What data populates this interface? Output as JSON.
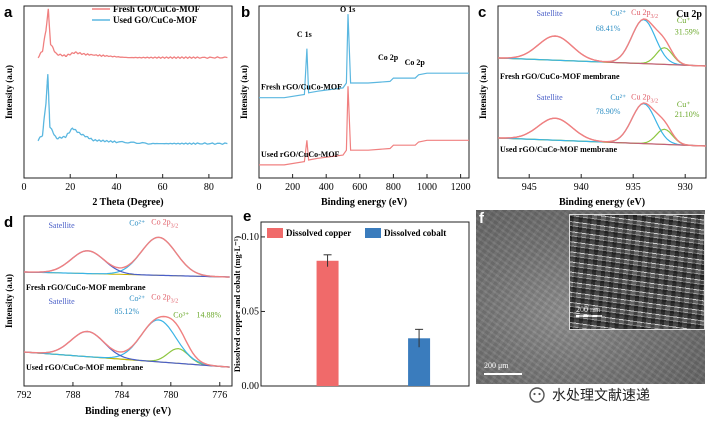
{
  "panels": {
    "a": {
      "label": "a",
      "xlabel": "2 Theta (Degree)",
      "ylabel": "Intensity (a.u)"
    },
    "b": {
      "label": "b",
      "xlabel": "Binding energy (eV)",
      "ylabel": "Intensity (a.u)"
    },
    "c": {
      "label": "c",
      "xlabel": "Binding energy (eV)",
      "ylabel": "Intensity (a.u)"
    },
    "d": {
      "label": "d",
      "xlabel": "Binding energy (eV)",
      "ylabel": "Intensity (a.u)"
    },
    "e": {
      "label": "e",
      "xlabel": "",
      "ylabel": "Dissolved copper and cobalt (mg·L⁻¹)"
    },
    "f": {
      "label": "f"
    }
  },
  "colors": {
    "fresh": "#f08080",
    "used": "#5bb7e0",
    "bar_copper": "#f06a6a",
    "bar_cobalt": "#3a7cbd",
    "green": "#8dc63f",
    "blue_fit": "#3ab4e6"
  },
  "chart_data": [
    {
      "id": "a",
      "type": "line",
      "xlabel": "2 Theta (Degree)",
      "ylabel": "Intensity (a.u)",
      "xlim": [
        0,
        90
      ],
      "xticks": [
        0,
        20,
        40,
        60,
        80
      ],
      "legend": [
        "Fresh GO/CuCo-MOF",
        "Used GO/CuCo-MOF"
      ],
      "series": [
        {
          "name": "Fresh GO/CuCo-MOF",
          "x": [
            6,
            8,
            9.5,
            10.5,
            11.5,
            14,
            18,
            22,
            26,
            35,
            45,
            55,
            65,
            75,
            88
          ],
          "y": [
            0.7,
            0.74,
            0.86,
            0.98,
            0.78,
            0.72,
            0.71,
            0.73,
            0.72,
            0.71,
            0.7,
            0.7,
            0.7,
            0.7,
            0.7
          ]
        },
        {
          "name": "Used GO/CuCo-MOF",
          "x": [
            6,
            8,
            9.5,
            10.3,
            11.2,
            14,
            18,
            21,
            24,
            30,
            40,
            55,
            65,
            75,
            88
          ],
          "y": [
            0.22,
            0.25,
            0.44,
            0.6,
            0.3,
            0.23,
            0.24,
            0.29,
            0.26,
            0.22,
            0.21,
            0.2,
            0.2,
            0.2,
            0.2
          ]
        }
      ]
    },
    {
      "id": "b",
      "type": "line",
      "xlabel": "Binding energy (eV)",
      "ylabel": "Intensity (a.u)",
      "xlim": [
        0,
        1250
      ],
      "xticks": [
        0,
        200,
        400,
        600,
        800,
        1000,
        1200
      ],
      "annotations": [
        "C 1s",
        "O 1s",
        "Co 2p",
        "Co 2p"
      ],
      "series": [
        {
          "name": "Fresh rGO/CuCo-MOF",
          "x": [
            0,
            150,
            270,
            285,
            295,
            350,
            500,
            520,
            530,
            545,
            650,
            780,
            800,
            930,
            950,
            1000,
            1250
          ],
          "y": [
            0.49,
            0.49,
            0.51,
            0.79,
            0.52,
            0.53,
            0.55,
            0.58,
            1.0,
            0.58,
            0.58,
            0.59,
            0.61,
            0.61,
            0.63,
            0.64,
            0.64
          ]
        },
        {
          "name": "Used rGO/CuCo-MOF",
          "x": [
            0,
            150,
            270,
            285,
            295,
            350,
            500,
            520,
            530,
            545,
            650,
            780,
            800,
            930,
            950,
            1000,
            1250
          ],
          "y": [
            0.08,
            0.08,
            0.1,
            0.23,
            0.11,
            0.12,
            0.14,
            0.17,
            0.56,
            0.17,
            0.17,
            0.18,
            0.2,
            0.2,
            0.22,
            0.23,
            0.23
          ]
        }
      ]
    },
    {
      "id": "c",
      "type": "line",
      "title": "Cu 2p",
      "xlabel": "Binding energy (eV)",
      "ylabel": "Intensity (a.u)",
      "xlim": [
        948,
        928
      ],
      "xticks": [
        945,
        940,
        935,
        930
      ],
      "annotations": {
        "fresh": {
          "satellite": "Satellite",
          "cu2": "Cu²⁺",
          "cu2_pct": "68.41%",
          "peak": "Cu 2p",
          "peak_sub": "3/2",
          "cu1": "Cu⁺",
          "cu1_pct": "31.59%",
          "label": "Fresh rGO/CuCo-MOF membrane"
        },
        "used": {
          "satellite": "Satellite",
          "cu2": "Cu²⁺",
          "cu2_pct": "78.90%",
          "peak": "Cu 2p",
          "peak_sub": "3/2",
          "cu1": "Cu⁺",
          "cu1_pct": "21.10%",
          "label": "Used rGO/CuCo-MOF membrane"
        }
      },
      "components": {
        "fresh": {
          "satellite_center": 942.5,
          "cu2_center": 934.0,
          "cu1_center": 932.0
        },
        "used": {
          "satellite_center": 942.5,
          "cu2_center": 934.0,
          "cu1_center": 932.0
        }
      }
    },
    {
      "id": "d",
      "type": "line",
      "xlabel": "Binding energy (eV)",
      "ylabel": "Intensity (a.u)",
      "xlim": [
        792,
        775
      ],
      "xticks": [
        792,
        788,
        784,
        780,
        776
      ],
      "annotations": {
        "fresh": {
          "satellite": "Satellite",
          "co2": "Co²⁺",
          "peak": "Co 2p",
          "peak_sub": "3/2",
          "label": "Fresh rGO/CuCo-MOF membrane"
        },
        "used": {
          "satellite": "Satellite",
          "co2": "Co²⁺",
          "co2_pct": "85.12%",
          "peak": "Co 2p",
          "peak_sub": "3/2",
          "co3": "Co³⁺",
          "co3_pct": "14.88%",
          "label": "Used rGO/CuCo-MOF membrane"
        }
      },
      "components": {
        "fresh": {
          "satellite_center": 786.8,
          "co2_center": 781.0
        },
        "used": {
          "satellite_center": 786.8,
          "co2_center": 781.0,
          "co3_center": 779.4
        }
      }
    },
    {
      "id": "e",
      "type": "bar",
      "categories": [
        "Dissolved copper",
        "Dissolved cobalt"
      ],
      "values": [
        0.084,
        0.032
      ],
      "errors": [
        0.004,
        0.006
      ],
      "ylabel": "Dissolved copper and cobalt (mg·L⁻¹)",
      "ylim": [
        0,
        0.11
      ],
      "yticks": [
        0.0,
        0.05,
        0.1
      ],
      "legend": [
        "Dissolved copper",
        "Dissolved cobalt"
      ]
    }
  ],
  "sem": {
    "scale_main": "200 μm",
    "scale_inset": "200 nm"
  },
  "watermark": {
    "text": "水处理文献速递"
  }
}
